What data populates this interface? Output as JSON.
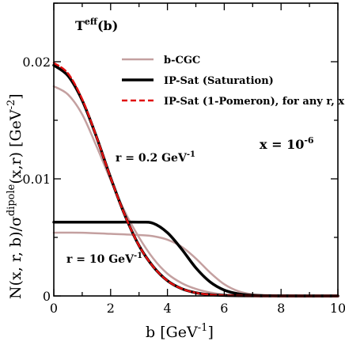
{
  "colors": {
    "bcgc": "#c4a0a0",
    "ipsat_saturation": "#000000",
    "ipsat_1pomeron": "#e01010",
    "axis": "#000000"
  },
  "text": {
    "title_main": "T",
    "title_sup": "eff",
    "title_rest": "(b)",
    "x_is": "x = 10",
    "x_exp": "-6",
    "curve_label_small_r": "r = 0.2 GeV",
    "curve_label_small_r_exp": "-1",
    "curve_label_large_r": "r = 10 GeV",
    "curve_label_large_r_exp": "-1"
  },
  "chart_data": {
    "type": "line",
    "title": "",
    "xlabel": "b [GeV-1]",
    "ylabel": "N(x, r, b)/σdipole(x,r)  [GeV-2]",
    "xlim": [
      0,
      10
    ],
    "ylim": [
      0,
      0.025
    ],
    "x_ticks": [
      "0",
      "2",
      "4",
      "6",
      "8",
      "10"
    ],
    "y_ticks": [
      "0",
      "0.01",
      "0.02"
    ],
    "legend_position": "top-right",
    "series": [
      {
        "name": "b-CGC",
        "group": "r = 0.2 GeV-1",
        "x": [
          0,
          0.5,
          1,
          1.5,
          2,
          2.5,
          3,
          3.5,
          4,
          4.5,
          5,
          5.5,
          6,
          7,
          8,
          10
        ],
        "y": [
          0.0179,
          0.0172,
          0.0155,
          0.0128,
          0.0099,
          0.0072,
          0.005,
          0.0032,
          0.0019,
          0.0011,
          0.0006,
          0.0003,
          0.00012,
          2e-05,
          0,
          0
        ]
      },
      {
        "name": "IP-Sat (Saturation)",
        "group": "r = 0.2 GeV-1",
        "x": [
          0,
          0.5,
          1,
          1.5,
          2,
          2.5,
          3,
          3.5,
          4,
          4.5,
          5,
          5.5,
          6,
          7,
          8,
          10
        ],
        "y": [
          0.0197,
          0.0188,
          0.0167,
          0.0136,
          0.0101,
          0.0069,
          0.0043,
          0.0025,
          0.0013,
          0.00062,
          0.00027,
          0.00011,
          4e-05,
          5e-06,
          0,
          0
        ]
      },
      {
        "name": "IP-Sat (1-Pomeron), for any  r, x",
        "group": "r = 0.2 GeV-1",
        "x": [
          0,
          0.5,
          1,
          1.5,
          2,
          2.5,
          3,
          3.5,
          4,
          4.5,
          5,
          5.5,
          6,
          7,
          8,
          10
        ],
        "y": [
          0.0199,
          0.019,
          0.0168,
          0.0136,
          0.0101,
          0.0069,
          0.0043,
          0.0025,
          0.0013,
          0.00062,
          0.00027,
          0.00011,
          4e-05,
          5e-06,
          0,
          0
        ]
      },
      {
        "name": "b-CGC",
        "group": "r = 10 GeV-1",
        "x": [
          0,
          1,
          2,
          3,
          3.5,
          4,
          4.5,
          5,
          5.5,
          6,
          6.5,
          7,
          7.5,
          8,
          10
        ],
        "y": [
          0.0054,
          0.0054,
          0.0053,
          0.0052,
          0.0051,
          0.0048,
          0.0042,
          0.0032,
          0.002,
          0.001,
          0.0004,
          0.00013,
          4e-05,
          1e-05,
          0
        ]
      },
      {
        "name": "IP-Sat (Saturation)",
        "group": "r = 10 GeV-1",
        "x": [
          0,
          1,
          2,
          3,
          3.5,
          4,
          4.5,
          5,
          5.5,
          6,
          6.5,
          7,
          8,
          10
        ],
        "y": [
          0.0063,
          0.0063,
          0.0063,
          0.0063,
          0.0062,
          0.0054,
          0.004,
          0.0024,
          0.0012,
          0.0005,
          0.00018,
          6e-05,
          1e-05,
          0
        ]
      }
    ]
  }
}
